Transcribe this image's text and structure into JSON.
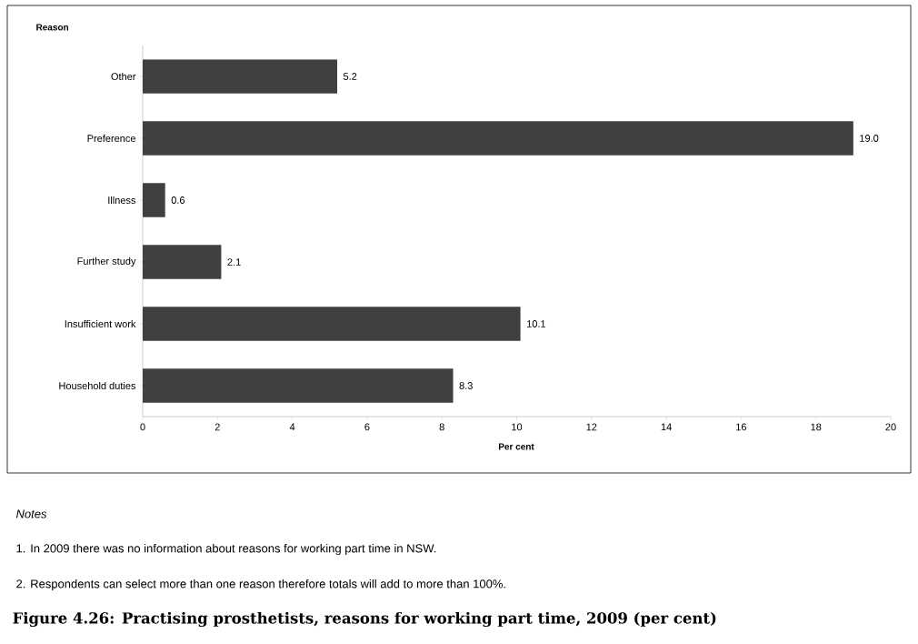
{
  "chart_data": {
    "type": "bar",
    "orientation": "horizontal",
    "title": "Figure 4.26: Practising prosthetists, reasons for working part time, 2009 (per cent)",
    "xlabel": "Per cent",
    "ylabel": "Reason",
    "categories": [
      "Other",
      "Preference",
      "Illness",
      "Further study",
      "Insufficient work",
      "Household duties"
    ],
    "values": [
      5.2,
      19.0,
      0.6,
      2.1,
      10.1,
      8.3
    ],
    "color": "#404040",
    "xlim": [
      0,
      20
    ],
    "xticks": [
      0,
      2,
      4,
      6,
      8,
      10,
      12,
      14,
      16,
      18,
      20
    ],
    "value_labels": [
      "5.2",
      "19.0",
      "0.6",
      "2.1",
      "10.1",
      "8.3"
    ],
    "annotations": [
      "Notes",
      "1.  In 2009 there was no information about reasons for working part time in NSW.",
      "2.  Respondents can select more than one reason therefore totals will add to more than 100%."
    ]
  }
}
